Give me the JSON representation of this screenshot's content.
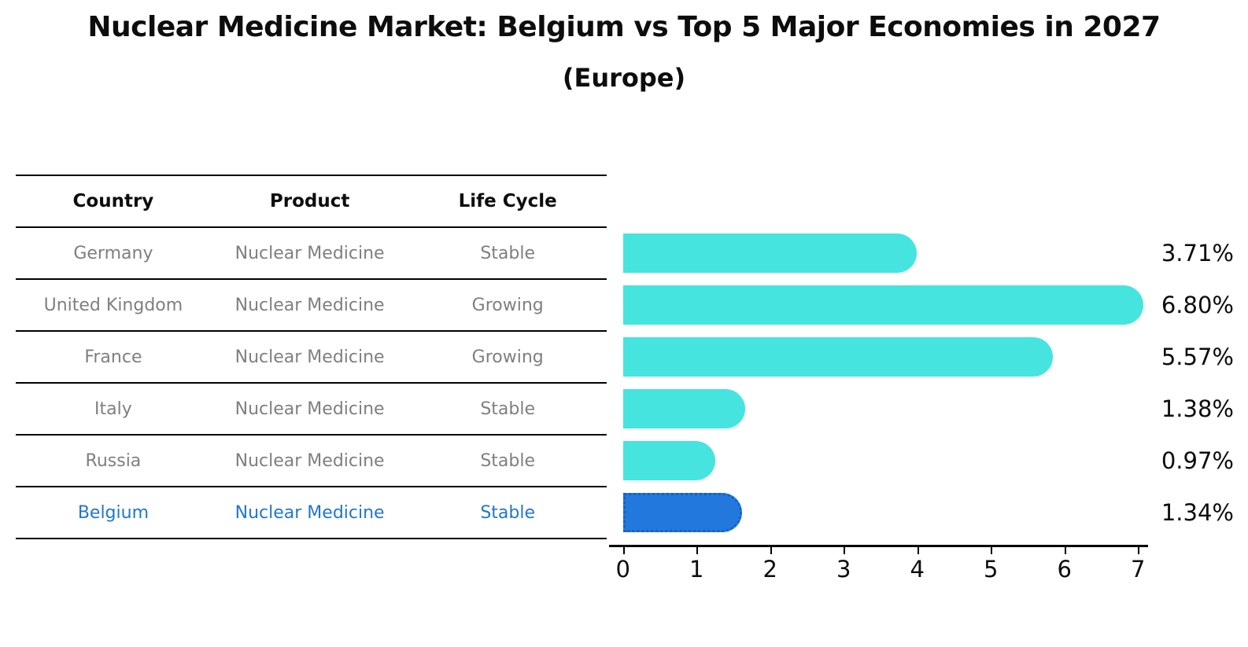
{
  "title": "Nuclear Medicine Market: Belgium vs Top 5 Major Economies in 2027",
  "subtitle": "(Europe)",
  "table": {
    "headers": [
      "Country",
      "Product",
      "Life Cycle"
    ],
    "rows": [
      {
        "country": "Germany",
        "product": "Nuclear Medicine",
        "life_cycle": "Stable"
      },
      {
        "country": "United Kingdom",
        "product": "Nuclear Medicine",
        "life_cycle": "Growing"
      },
      {
        "country": "France",
        "product": "Nuclear Medicine",
        "life_cycle": "Growing"
      },
      {
        "country": "Italy",
        "product": "Nuclear Medicine",
        "life_cycle": "Stable"
      },
      {
        "country": "Russia",
        "product": "Nuclear Medicine",
        "life_cycle": "Stable"
      },
      {
        "country": "Belgium",
        "product": "Nuclear Medicine",
        "life_cycle": "Stable"
      }
    ]
  },
  "chart_data": {
    "type": "bar",
    "orientation": "horizontal",
    "title": "Nuclear Medicine Market: Belgium vs Top 5 Major Economies in 2027 (Europe)",
    "categories": [
      "Germany",
      "United Kingdom",
      "France",
      "Italy",
      "Russia",
      "Belgium"
    ],
    "values": [
      3.71,
      6.8,
      5.57,
      1.38,
      0.97,
      1.34
    ],
    "labels": [
      "3.71%",
      "6.80%",
      "5.57%",
      "1.38%",
      "0.97%",
      "1.34%"
    ],
    "xlabel": "",
    "ylabel": "",
    "xlim": [
      0,
      7
    ],
    "xticks": [
      "0",
      "1",
      "2",
      "3",
      "4",
      "5",
      "6",
      "7"
    ],
    "grid": false,
    "legend": false,
    "bar_color": "#45e4df",
    "highlight_color": "#2278dc",
    "highlight_border_color": "#155fc8",
    "highlight_index": 5,
    "highlight_text_color": "#2277c8",
    "row_text_color": "#7f7f7f"
  }
}
